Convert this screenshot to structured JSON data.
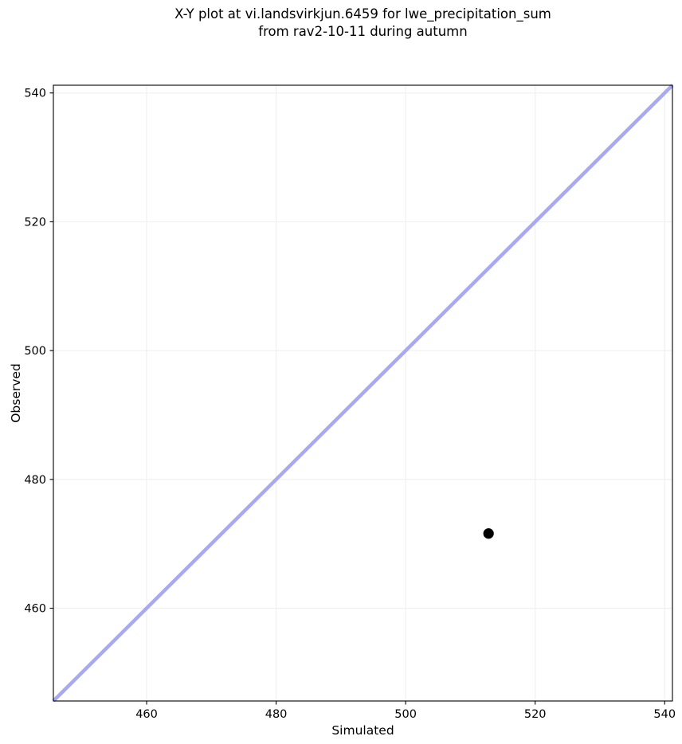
{
  "chart_data": {
    "type": "scatter",
    "title": "X-Y plot at vi.landsvirkjun.6459 for lwe_precipitation_sum\nfrom rav2-10-11 during autumn",
    "title_lines": [
      "X-Y plot at vi.landsvirkjun.6459 for lwe_precipitation_sum",
      "from rav2-10-11 during autumn"
    ],
    "xlabel": "Simulated",
    "ylabel": "Observed",
    "xlim": [
      445.6,
      541.2
    ],
    "ylim": [
      445.6,
      541.2
    ],
    "xticks": [
      460,
      480,
      500,
      520,
      540
    ],
    "yticks": [
      460,
      480,
      500,
      520,
      540
    ],
    "grid": true,
    "legend": false,
    "series": [
      {
        "name": "identity_line",
        "kind": "line",
        "x": [
          445.6,
          541.2
        ],
        "y": [
          445.6,
          541.2
        ],
        "color": "#a9a9f2",
        "linewidth": 4.5
      },
      {
        "name": "observations",
        "kind": "scatter",
        "x": [
          512.8
        ],
        "y": [
          471.6
        ],
        "color": "#000000",
        "marker": "circle",
        "marker_radius": 6.6
      }
    ],
    "colors": {
      "background": "#ffffff",
      "grid": "#f0f0f0",
      "spine": "#000000",
      "tick": "#000000",
      "text": "#000000"
    }
  }
}
